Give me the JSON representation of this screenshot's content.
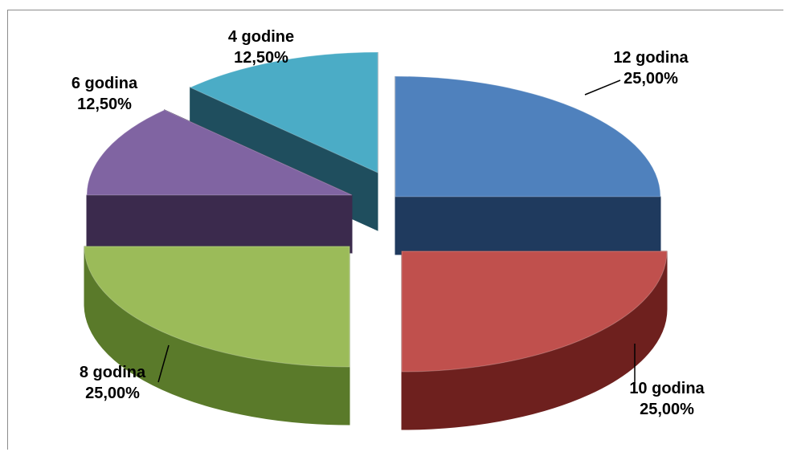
{
  "chart_data": {
    "type": "pie",
    "style": "3d-exploded",
    "legend": "none",
    "slices": [
      {
        "label": "12 godina",
        "value": 25.0,
        "value_label": "25,00%",
        "color": "#4f81bd",
        "side_color": "#1f3a5e"
      },
      {
        "label": "10 godina",
        "value": 25.0,
        "value_label": "25,00%",
        "color": "#c0504d",
        "side_color": "#6e201e"
      },
      {
        "label": "8 godina",
        "value": 25.0,
        "value_label": "25,00%",
        "color": "#9bbb59",
        "side_color": "#5a7a2a"
      },
      {
        "label": "6 godina",
        "value": 12.5,
        "value_label": "12,50%",
        "color": "#8064a2",
        "side_color": "#3b2a4d"
      },
      {
        "label": "4 godine",
        "value": 12.5,
        "value_label": "12,50%",
        "color": "#4bacc6",
        "side_color": "#1f4e5e"
      }
    ]
  }
}
